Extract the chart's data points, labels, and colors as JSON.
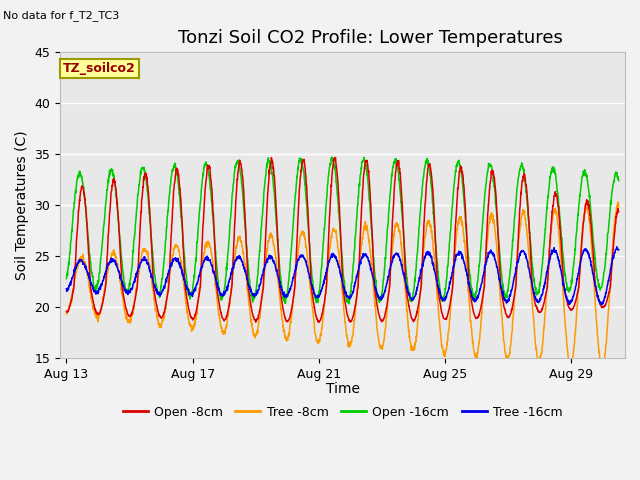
{
  "title": "Tonzi Soil CO2 Profile: Lower Temperatures",
  "subtitle": "No data for f_T2_TC3",
  "ylabel": "Soil Temperatures (C)",
  "xlabel": "Time",
  "ylim": [
    15,
    45
  ],
  "total_days": 17.5,
  "x_ticks_labels": [
    "Aug 13",
    "Aug 17",
    "Aug 21",
    "Aug 25",
    "Aug 29"
  ],
  "x_ticks_days": [
    0,
    4,
    8,
    12,
    16
  ],
  "legend_labels": [
    "Open -8cm",
    "Tree -8cm",
    "Open -16cm",
    "Tree -16cm"
  ],
  "legend_colors": [
    "#dd0000",
    "#ff9900",
    "#00cc00",
    "#0000ee"
  ],
  "annotation_box_text": "TZ_soilco2",
  "annotation_box_color": "#ffff99",
  "annotation_box_edge": "#999900",
  "annotation_text_color": "#990000",
  "plot_bg_color": "#e8e8e8",
  "fig_bg_color": "#f2f2f2",
  "title_fontsize": 13,
  "axis_label_fontsize": 10,
  "tick_fontsize": 9
}
